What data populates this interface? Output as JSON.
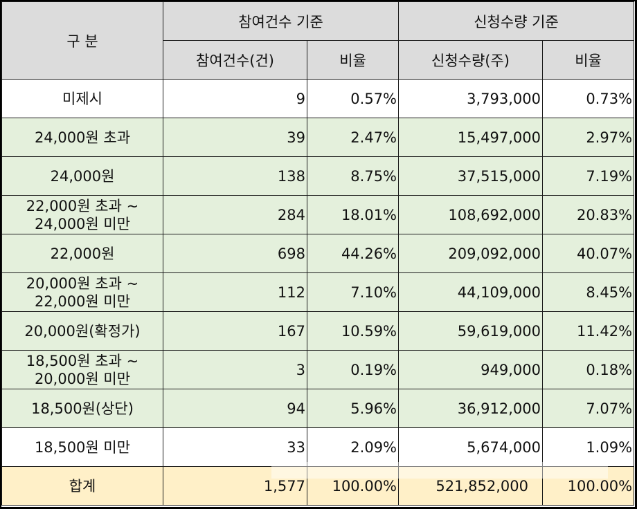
{
  "header": {
    "category": "구 분",
    "group1": "참여건수 기준",
    "group2": "신청수량 기준",
    "sub1": "참여건수(건)",
    "sub2": "비율",
    "sub3": "신청수량(주)",
    "sub4": "비율"
  },
  "rows": [
    {
      "label": "미제시",
      "count": "9",
      "count_pct": "0.57%",
      "qty": "3,793,000",
      "qty_pct": "0.73%"
    },
    {
      "label": "24,000원 초과",
      "count": "39",
      "count_pct": "2.47%",
      "qty": "15,497,000",
      "qty_pct": "2.97%"
    },
    {
      "label": "24,000원",
      "count": "138",
      "count_pct": "8.75%",
      "qty": "37,515,000",
      "qty_pct": "7.19%"
    },
    {
      "label1": "22,000원 초과 ~",
      "label2": "24,000원 미만",
      "count": "284",
      "count_pct": "18.01%",
      "qty": "108,692,000",
      "qty_pct": "20.83%"
    },
    {
      "label": "22,000원",
      "count": "698",
      "count_pct": "44.26%",
      "qty": "209,092,000",
      "qty_pct": "40.07%"
    },
    {
      "label1": "20,000원 초과 ~",
      "label2": "22,000원 미만",
      "count": "112",
      "count_pct": "7.10%",
      "qty": "44,109,000",
      "qty_pct": "8.45%"
    },
    {
      "label": "20,000원(확정가)",
      "count": "167",
      "count_pct": "10.59%",
      "qty": "59,619,000",
      "qty_pct": "11.42%"
    },
    {
      "label1": "18,500원 초과 ~",
      "label2": "20,000원 미만",
      "count": "3",
      "count_pct": "0.19%",
      "qty": "949,000",
      "qty_pct": "0.18%"
    },
    {
      "label": "18,500원(상단)",
      "count": "94",
      "count_pct": "5.96%",
      "qty": "36,912,000",
      "qty_pct": "7.07%"
    },
    {
      "label": "18,500원 미만",
      "count": "33",
      "count_pct": "2.09%",
      "qty": "5,674,000",
      "qty_pct": "1.09%"
    }
  ],
  "total": {
    "label": "합계",
    "count": "1,577",
    "count_pct": "100.00%",
    "qty": "521,852,000",
    "qty_pct": "100.00%"
  },
  "colors": {
    "header_bg": "#dcdcdc",
    "highlight_row": "#e4f0dc",
    "total_row": "#fff0c8"
  }
}
